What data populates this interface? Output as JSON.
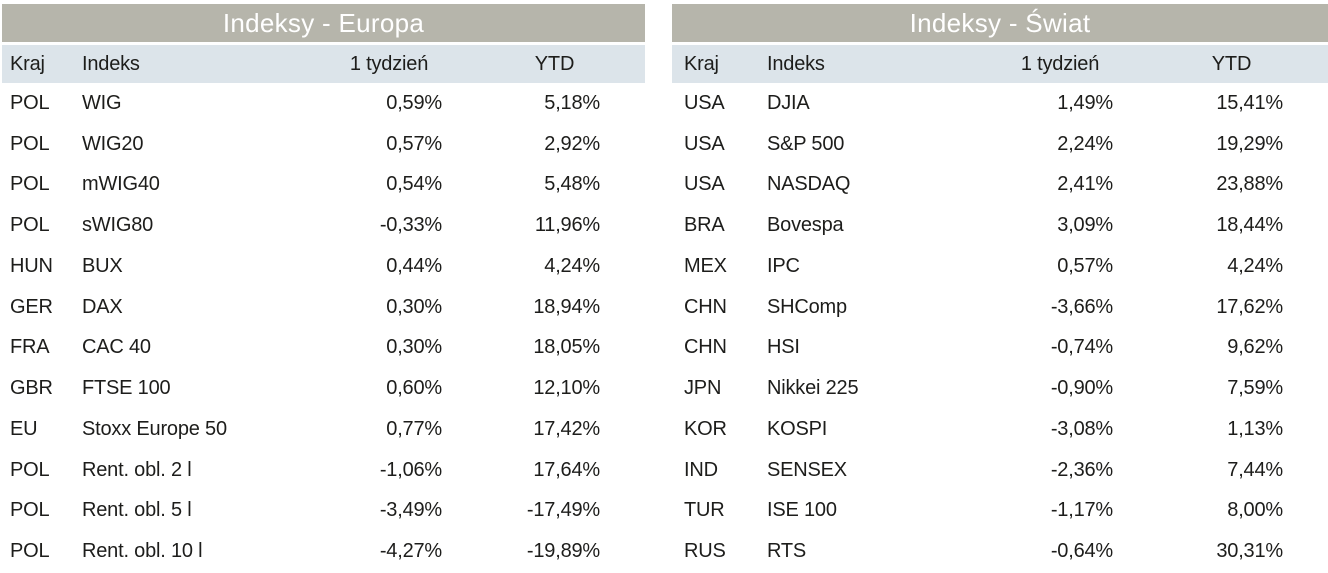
{
  "chart_data": [
    {
      "type": "table",
      "title": "Indeksy - Europa",
      "columns": [
        "Kraj",
        "Indeks",
        "1 tydzień",
        "YTD"
      ],
      "rows": [
        [
          "POL",
          "WIG",
          "0,59%",
          "5,18%"
        ],
        [
          "POL",
          "WIG20",
          "0,57%",
          "2,92%"
        ],
        [
          "POL",
          "mWIG40",
          "0,54%",
          "5,48%"
        ],
        [
          "POL",
          "sWIG80",
          "-0,33%",
          "11,96%"
        ],
        [
          "HUN",
          "BUX",
          "0,44%",
          "4,24%"
        ],
        [
          "GER",
          "DAX",
          "0,30%",
          "18,94%"
        ],
        [
          "FRA",
          "CAC 40",
          "0,30%",
          "18,05%"
        ],
        [
          "GBR",
          "FTSE 100",
          "0,60%",
          "12,10%"
        ],
        [
          "EU",
          "Stoxx Europe 50",
          "0,77%",
          "17,42%"
        ],
        [
          "POL",
          "Rent. obl. 2 l",
          "-1,06%",
          "17,64%"
        ],
        [
          "POL",
          "Rent. obl. 5 l",
          "-3,49%",
          "-17,49%"
        ],
        [
          "POL",
          "Rent. obl. 10 l",
          "-4,27%",
          "-19,89%"
        ]
      ]
    },
    {
      "type": "table",
      "title": "Indeksy - Świat",
      "columns": [
        "Kraj",
        "Indeks",
        "1 tydzień",
        "YTD"
      ],
      "rows": [
        [
          "USA",
          "DJIA",
          "1,49%",
          "15,41%"
        ],
        [
          "USA",
          "S&P 500",
          "2,24%",
          "19,29%"
        ],
        [
          "USA",
          "NASDAQ",
          "2,41%",
          "23,88%"
        ],
        [
          "BRA",
          "Bovespa",
          "3,09%",
          "18,44%"
        ],
        [
          "MEX",
          "IPC",
          "0,57%",
          "4,24%"
        ],
        [
          "CHN",
          "SHComp",
          "-3,66%",
          "17,62%"
        ],
        [
          "CHN",
          "HSI",
          "-0,74%",
          "9,62%"
        ],
        [
          "JPN",
          "Nikkei 225",
          "-0,90%",
          "7,59%"
        ],
        [
          "KOR",
          "KOSPI",
          "-3,08%",
          "1,13%"
        ],
        [
          "IND",
          "SENSEX",
          "-2,36%",
          "7,44%"
        ],
        [
          "TUR",
          "ISE 100",
          "-1,17%",
          "8,00%"
        ],
        [
          "RUS",
          "RTS",
          "-0,64%",
          "30,31%"
        ]
      ]
    }
  ],
  "colors": {
    "title_bar_bg": "#b6b5ab",
    "title_text": "#ffffff",
    "header_row_bg": "#dce4ea",
    "row_bg": "#ffffff",
    "body_text": "#1d1d1b"
  }
}
